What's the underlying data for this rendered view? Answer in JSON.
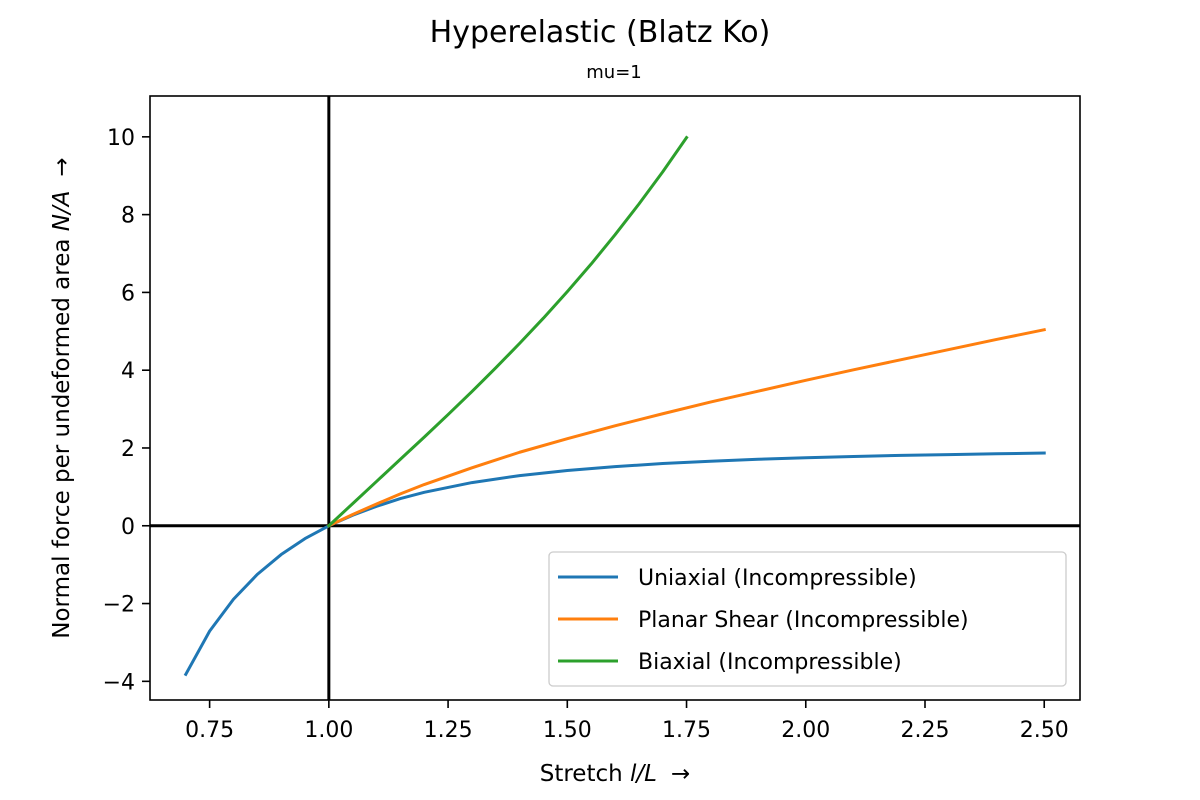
{
  "chart_data": {
    "type": "line",
    "title": "Hyperelastic (Blatz Ko)",
    "subtitle": "mu=1",
    "xlabel": {
      "prefix": "Stretch ",
      "var": "l/L",
      "arrow": "→"
    },
    "ylabel": {
      "prefix": "Normal force per undeformed area ",
      "var": "N/A",
      "arrow": "→"
    },
    "xlim": [
      0.625,
      2.575
    ],
    "ylim": [
      -4.48,
      11.05
    ],
    "xticks": [
      0.75,
      1.0,
      1.25,
      1.5,
      1.75,
      2.0,
      2.25,
      2.5
    ],
    "xtick_labels": [
      "0.75",
      "1.00",
      "1.25",
      "1.50",
      "1.75",
      "2.00",
      "2.25",
      "2.50"
    ],
    "yticks": [
      -4,
      -2,
      0,
      2,
      4,
      6,
      8,
      10
    ],
    "ytick_labels": [
      "−4",
      "−2",
      "0",
      "2",
      "4",
      "6",
      "8",
      "10"
    ],
    "grid": false,
    "legend_position": "lower-right",
    "reference_lines": {
      "x": 1.0,
      "y": 0
    },
    "series": [
      {
        "name": "Uniaxial (Incompressible)",
        "color": "#1f77b4",
        "x": [
          0.7,
          0.75,
          0.8,
          0.85,
          0.9,
          0.95,
          1.0,
          1.05,
          1.1,
          1.15,
          1.2,
          1.3,
          1.4,
          1.5,
          1.6,
          1.7,
          1.8,
          1.9,
          2.0,
          2.1,
          2.2,
          2.3,
          2.4,
          2.5
        ],
        "y": [
          -3.82,
          -2.71,
          -1.89,
          -1.25,
          -0.74,
          -0.33,
          0.0,
          0.27,
          0.5,
          0.7,
          0.86,
          1.11,
          1.29,
          1.42,
          1.52,
          1.6,
          1.66,
          1.71,
          1.75,
          1.78,
          1.81,
          1.83,
          1.85,
          1.87
        ]
      },
      {
        "name": "Planar Shear (Incompressible)",
        "color": "#ff7f0e",
        "x": [
          1.0,
          1.05,
          1.1,
          1.15,
          1.2,
          1.3,
          1.4,
          1.5,
          1.6,
          1.7,
          1.8,
          1.9,
          2.0,
          2.1,
          2.2,
          2.3,
          2.4,
          2.5
        ],
        "y": [
          0.0,
          0.29,
          0.56,
          0.82,
          1.06,
          1.49,
          1.89,
          2.24,
          2.57,
          2.88,
          3.18,
          3.46,
          3.74,
          4.01,
          4.27,
          4.53,
          4.79,
          5.04
        ]
      },
      {
        "name": "Biaxial (Incompressible)",
        "color": "#2ca02c",
        "x": [
          1.0,
          1.05,
          1.1,
          1.15,
          1.2,
          1.25,
          1.3,
          1.35,
          1.4,
          1.45,
          1.5,
          1.55,
          1.6,
          1.65,
          1.7,
          1.75
        ],
        "y": [
          0.0,
          0.57,
          1.14,
          1.71,
          2.28,
          2.86,
          3.45,
          4.06,
          4.69,
          5.34,
          6.02,
          6.73,
          7.48,
          8.27,
          9.1,
          9.98
        ]
      }
    ]
  }
}
